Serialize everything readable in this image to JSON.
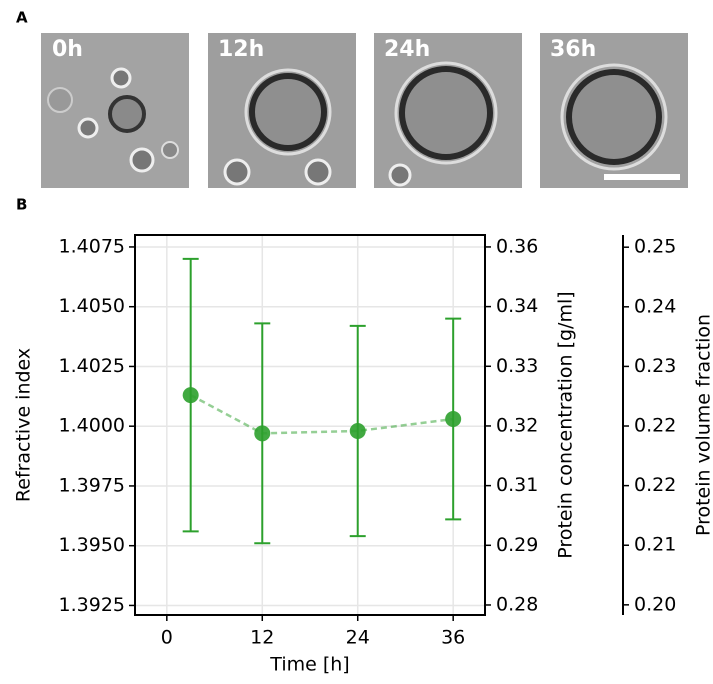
{
  "panel_a": {
    "label": "A",
    "image_labels": [
      "0h",
      "12h",
      "24h",
      "36h"
    ]
  },
  "chart_data": {
    "type": "errorbar",
    "panel_label": "B",
    "x_label": "Time [h]",
    "y_label": "Refractive index",
    "y2_label": "Protein concentration [g/ml]",
    "y3_label": "Protein volume fraction",
    "x": [
      3,
      12,
      24,
      36
    ],
    "series": [
      {
        "color": "#2ca02c",
        "values": [
          1.4013,
          1.3997,
          1.3998,
          1.4003
        ],
        "errors": [
          0.0057,
          0.0046,
          0.0044,
          0.0042
        ]
      }
    ],
    "xlim": [
      -4,
      40
    ],
    "xticks": [
      0,
      12,
      24,
      36
    ],
    "ylim": [
      1.3921,
      1.408
    ],
    "yticks": [
      {
        "value": 1.3925,
        "label": "1.3925"
      },
      {
        "value": 1.395,
        "label": "1.3950"
      },
      {
        "value": 1.3975,
        "label": "1.3975"
      },
      {
        "value": 1.4,
        "label": "1.4000"
      },
      {
        "value": 1.4025,
        "label": "1.4025"
      },
      {
        "value": 1.405,
        "label": "1.4050"
      },
      {
        "value": 1.4075,
        "label": "1.4075"
      }
    ],
    "y2lim": [
      0.2789,
      0.3585
    ],
    "y2ticks": [
      {
        "value": 0.281,
        "label": "0.28"
      },
      {
        "value": 0.2935,
        "label": "0.29"
      },
      {
        "value": 0.306,
        "label": "0.31"
      },
      {
        "value": 0.3185,
        "label": "0.32"
      },
      {
        "value": 0.331,
        "label": "0.33"
      },
      {
        "value": 0.3435,
        "label": "0.34"
      },
      {
        "value": 0.356,
        "label": "0.36"
      }
    ],
    "y3lim": [
      0.1967,
      0.2528
    ],
    "y3ticks": [
      {
        "value": 0.1982,
        "label": "0.20"
      },
      {
        "value": 0.207,
        "label": "0.21"
      },
      {
        "value": 0.2158,
        "label": "0.22"
      },
      {
        "value": 0.2246,
        "label": "0.22"
      },
      {
        "value": 0.2334,
        "label": "0.23"
      },
      {
        "value": 0.2422,
        "label": "0.24"
      },
      {
        "value": 0.251,
        "label": "0.25"
      }
    ],
    "grid": true
  }
}
